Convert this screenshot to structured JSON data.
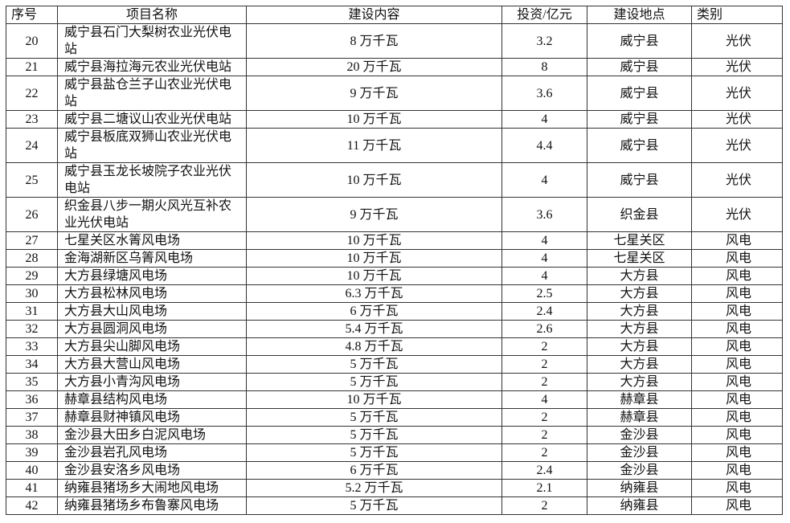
{
  "table": {
    "headers": [
      "序号",
      "项目名称",
      "建设内容",
      "投资/亿元",
      "建设地点",
      "类别"
    ],
    "rows": [
      {
        "no": "20",
        "name": "威宁县石门大梨树农业光伏电站",
        "content": "8 万千瓦",
        "invest": "3.2",
        "location": "威宁县",
        "category": "光伏"
      },
      {
        "no": "21",
        "name": "威宁县海拉海元农业光伏电站",
        "content": "20 万千瓦",
        "invest": "8",
        "location": "威宁县",
        "category": "光伏"
      },
      {
        "no": "22",
        "name": "威宁县盐仓兰子山农业光伏电站",
        "content": "9 万千瓦",
        "invest": "3.6",
        "location": "威宁县",
        "category": "光伏"
      },
      {
        "no": "23",
        "name": "威宁县二塘议山农业光伏电站",
        "content": "10 万千瓦",
        "invest": "4",
        "location": "威宁县",
        "category": "光伏"
      },
      {
        "no": "24",
        "name": "威宁县板底双狮山农业光伏电站",
        "content": "11 万千瓦",
        "invest": "4.4",
        "location": "威宁县",
        "category": "光伏"
      },
      {
        "no": "25",
        "name": "威宁县玉龙长坡院子农业光伏电站",
        "content": "10 万千瓦",
        "invest": "4",
        "location": "威宁县",
        "category": "光伏"
      },
      {
        "no": "26",
        "name": "织金县八步一期火风光互补农业光伏电站",
        "content": "9 万千瓦",
        "invest": "3.6",
        "location": "织金县",
        "category": "光伏"
      },
      {
        "no": "27",
        "name": "七星关区水箐风电场",
        "content": "10 万千瓦",
        "invest": "4",
        "location": "七星关区",
        "category": "风电"
      },
      {
        "no": "28",
        "name": "金海湖新区乌箐风电场",
        "content": "10 万千瓦",
        "invest": "4",
        "location": "七星关区",
        "category": "风电"
      },
      {
        "no": "29",
        "name": "大方县绿塘风电场",
        "content": "10 万千瓦",
        "invest": "4",
        "location": "大方县",
        "category": "风电"
      },
      {
        "no": "30",
        "name": "大方县松林风电场",
        "content": "6.3 万千瓦",
        "invest": "2.5",
        "location": "大方县",
        "category": "风电"
      },
      {
        "no": "31",
        "name": "大方县大山风电场",
        "content": "6 万千瓦",
        "invest": "2.4",
        "location": "大方县",
        "category": "风电"
      },
      {
        "no": "32",
        "name": "大方县圆洞风电场",
        "content": "5.4 万千瓦",
        "invest": "2.6",
        "location": "大方县",
        "category": "风电"
      },
      {
        "no": "33",
        "name": "大方县尖山脚风电场",
        "content": "4.8 万千瓦",
        "invest": "2",
        "location": "大方县",
        "category": "风电"
      },
      {
        "no": "34",
        "name": "大方县大营山风电场",
        "content": "5 万千瓦",
        "invest": "2",
        "location": "大方县",
        "category": "风电"
      },
      {
        "no": "35",
        "name": "大方县小青沟风电场",
        "content": "5 万千瓦",
        "invest": "2",
        "location": "大方县",
        "category": "风电"
      },
      {
        "no": "36",
        "name": "赫章县结构风电场",
        "content": "10 万千瓦",
        "invest": "4",
        "location": "赫章县",
        "category": "风电"
      },
      {
        "no": "37",
        "name": "赫章县财神镇风电场",
        "content": "5 万千瓦",
        "invest": "2",
        "location": "赫章县",
        "category": "风电"
      },
      {
        "no": "38",
        "name": "金沙县大田乡白泥风电场",
        "content": "5 万千瓦",
        "invest": "2",
        "location": "金沙县",
        "category": "风电"
      },
      {
        "no": "39",
        "name": "金沙县岩孔风电场",
        "content": "5 万千瓦",
        "invest": "2",
        "location": "金沙县",
        "category": "风电"
      },
      {
        "no": "40",
        "name": "金沙县安洛乡风电场",
        "content": "6 万千瓦",
        "invest": "2.4",
        "location": "金沙县",
        "category": "风电"
      },
      {
        "no": "41",
        "name": "纳雍县猪场乡大闹地风电场",
        "content": "5.2 万千瓦",
        "invest": "2.1",
        "location": "纳雍县",
        "category": "风电"
      },
      {
        "no": "42",
        "name": "纳雍县猪场乡布鲁寨风电场",
        "content": "5 万千瓦",
        "invest": "2",
        "location": "纳雍县",
        "category": "风电"
      }
    ]
  }
}
